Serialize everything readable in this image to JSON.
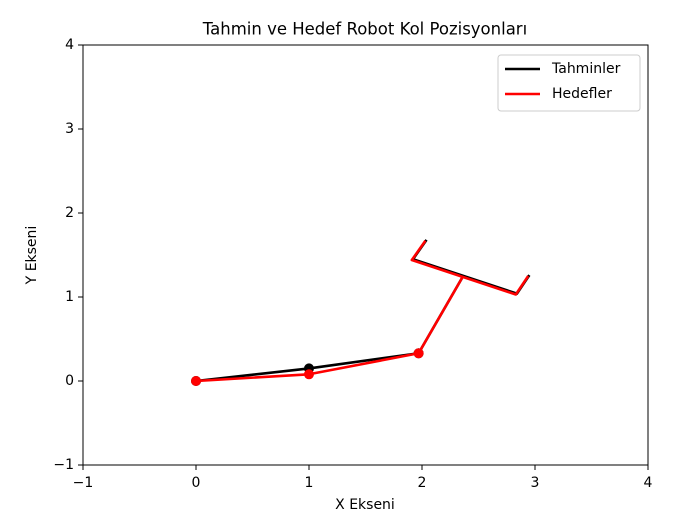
{
  "chart_data": {
    "type": "line",
    "title": "Tahmin ve Hedef Robot Kol Pozisyonları",
    "xlabel": "X Ekseni",
    "ylabel": "Y Ekseni",
    "xlim": [
      -1,
      4
    ],
    "ylim": [
      -1,
      4
    ],
    "xticks": [
      {
        "value": -1,
        "label": "−1"
      },
      0,
      1,
      2,
      3,
      4
    ],
    "yticks": [
      {
        "value": -1,
        "label": "−1"
      },
      0,
      1,
      2,
      3,
      4
    ],
    "legend": "upper right",
    "series": [
      {
        "name": "Tahminler",
        "color": "#000000",
        "x": [
          0,
          1,
          1.97,
          2.36,
          null,
          2.04,
          1.92,
          2.84,
          2.95
        ],
        "values": [
          0,
          0.15,
          0.33,
          1.24,
          null,
          1.68,
          1.45,
          1.04,
          1.26
        ],
        "markers": [
          true,
          true,
          true,
          false,
          false,
          false,
          false,
          false,
          false
        ]
      },
      {
        "name": "Hedefler",
        "color": "#ff0000",
        "x": [
          0,
          1,
          1.97,
          2.36,
          null,
          2.03,
          1.91,
          2.83,
          2.94
        ],
        "values": [
          0,
          0.08,
          0.33,
          1.24,
          null,
          1.67,
          1.44,
          1.03,
          1.25
        ],
        "markers": [
          true,
          true,
          true,
          false,
          false,
          false,
          false,
          false,
          false
        ]
      }
    ]
  }
}
